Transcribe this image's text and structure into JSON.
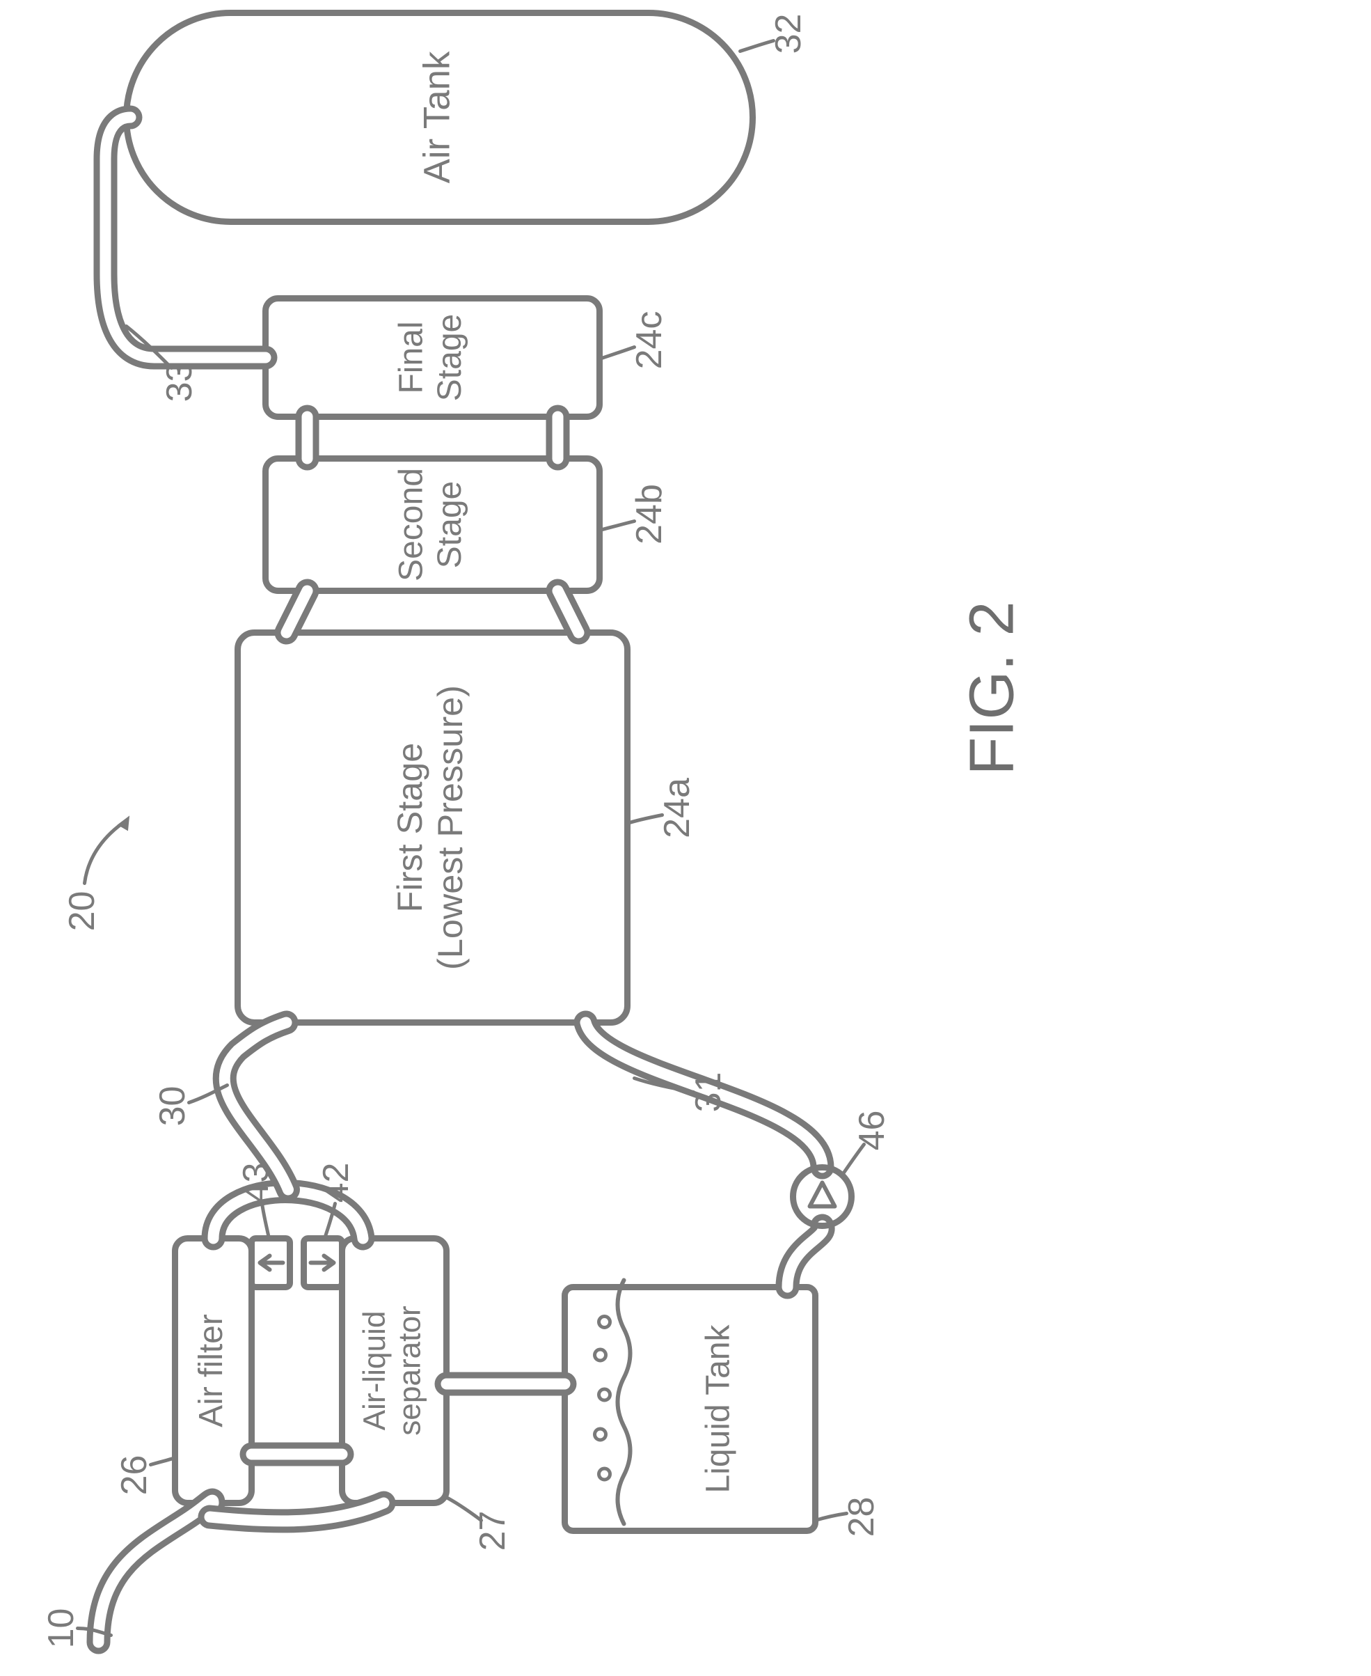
{
  "figure": {
    "caption": "FIG. 2",
    "caption_fontsize": 90,
    "overall_ref": "20",
    "type": "block-diagram",
    "background_color": "#ffffff",
    "stroke_color": "#7a7a7a",
    "stroke_width": 9,
    "label_color": "#7a7a7a",
    "label_fontsize": 48,
    "ref_fontsize": 52
  },
  "blocks": {
    "air_filter": {
      "label": "Air filter",
      "ref": "26"
    },
    "separator": {
      "label": "Air-liquid\nseparator",
      "ref": "27"
    },
    "liquid_tank": {
      "label": "Liquid Tank",
      "ref": "28"
    },
    "stage1": {
      "label": "First Stage\n(Lowest Pressure)",
      "ref": "24a"
    },
    "stage2": {
      "label": "Second\nStage",
      "ref": "24b"
    },
    "stage3": {
      "label": "Final\nStage",
      "ref": "24c"
    },
    "air_tank": {
      "label": "Air Tank",
      "ref": "32"
    }
  },
  "check_valves": {
    "upper": {
      "ref": "43",
      "direction": "up"
    },
    "lower": {
      "ref": "42",
      "direction": "down"
    }
  },
  "pump": {
    "ref": "46"
  },
  "lines": {
    "inlet": {
      "ref": "10"
    },
    "air_to_stage1": {
      "ref": "30"
    },
    "liquid_to_stage1": {
      "ref": "31"
    },
    "stage3_to_tank": {
      "ref": "33"
    }
  },
  "visual": {
    "liquid_bubble_color": "#7a7a7a",
    "liquid_bubble_radius": 8
  }
}
